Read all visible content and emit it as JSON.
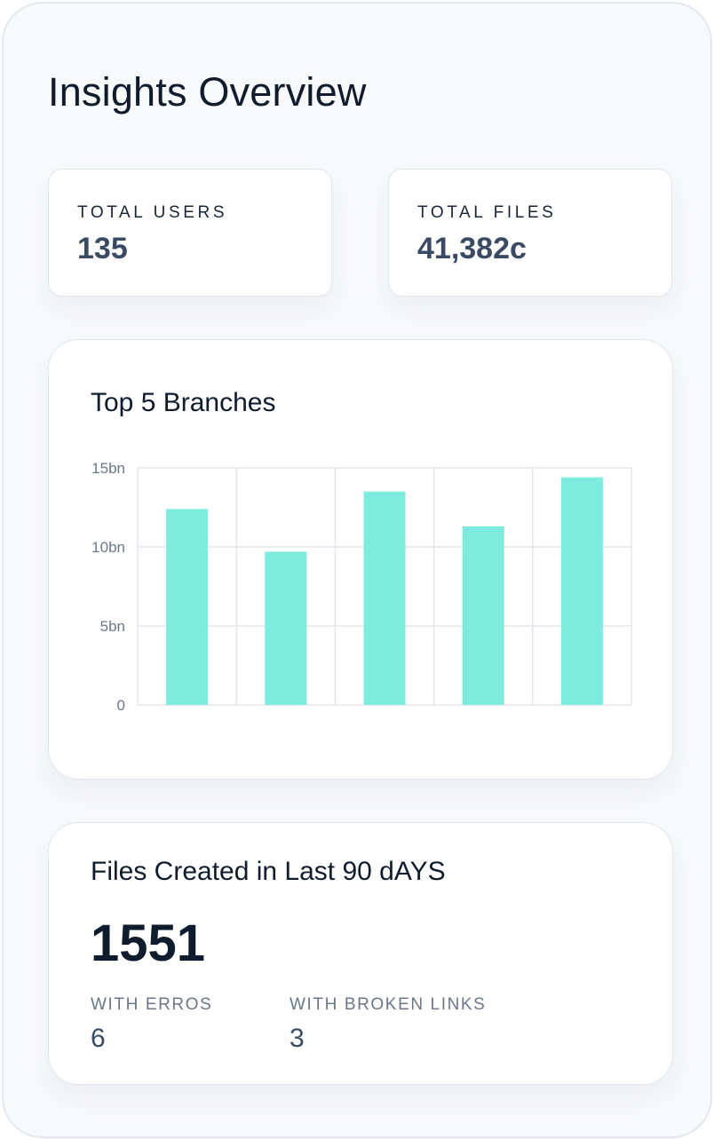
{
  "page": {
    "title": "Insights Overview"
  },
  "stats": {
    "users": {
      "label": "TOTAL USERS",
      "value": "135"
    },
    "files": {
      "label": "TOTAL FILES",
      "value": "41,382c"
    }
  },
  "chart_data": {
    "type": "bar",
    "title": "Top 5 Branches",
    "categories": [
      "",
      "",
      "",
      "",
      ""
    ],
    "values": [
      12.4,
      9.7,
      13.5,
      11.3,
      14.4
    ],
    "ylim": [
      0,
      15
    ],
    "ytick_values": [
      0,
      5,
      10,
      15
    ],
    "ytick_labels": [
      "0",
      "5bn",
      "10bn",
      "15bn"
    ],
    "grid": true,
    "bar_color": "#7eebdf"
  },
  "files_created": {
    "title": "Files Created in Last 90 dAYS",
    "count": "1551",
    "errors": {
      "label": "WITH ERROS",
      "value": "6"
    },
    "broken_links": {
      "label": "WITH BROKEN LINKS",
      "value": "3"
    }
  }
}
